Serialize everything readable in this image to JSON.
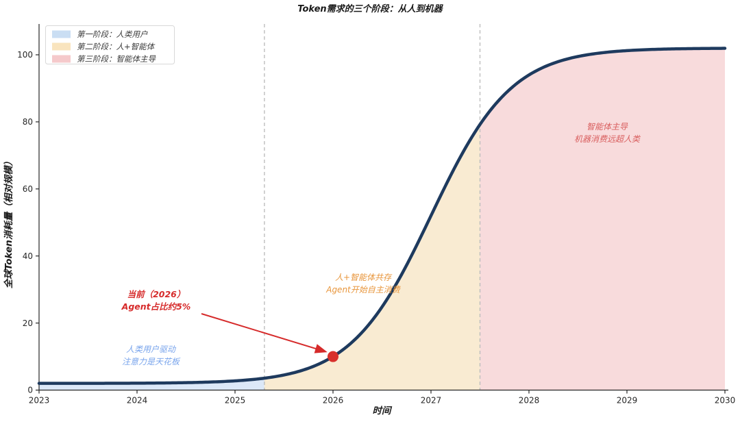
{
  "title": "Token需求的三个阶段：从人到机器",
  "axes": {
    "xlabel": "时间",
    "ylabel": "全球Token消耗量（相对规模）",
    "x_ticks": [
      2023,
      2024,
      2025,
      2026,
      2027,
      2028,
      2029,
      2030
    ],
    "y_ticks": [
      0,
      20,
      40,
      60,
      80,
      100
    ],
    "spine_color": "#262626"
  },
  "legend": {
    "items": [
      {
        "label": "第一阶段：人类用户",
        "color": "#cadef3"
      },
      {
        "label": "第二阶段：人+智能体",
        "color": "#f9e4be"
      },
      {
        "label": "第三阶段：智能体主导",
        "color": "#f5c9cb"
      }
    ],
    "border_color": "#d8d8d8"
  },
  "annotations": {
    "current": {
      "line1": "当前（2026）",
      "line2": "Agent占比约5%",
      "color": "#d62b2b"
    },
    "phase1": {
      "line1": "人类用户驱动",
      "line2": "注意力是天花板",
      "color": "#7aa5ec"
    },
    "phase2": {
      "line1": "人+智能体共存",
      "line2": "Agent开始自主消费",
      "color": "#e8963c"
    },
    "phase3": {
      "line1": "智能体主导",
      "line2": "机器消费远超人类",
      "color": "#d95f5f"
    }
  },
  "chart_data": {
    "type": "area",
    "title": "Token需求的三个阶段：从人到机器",
    "xlabel": "时间",
    "ylabel": "全球Token消耗量（相对规模）",
    "x_range": [
      2023,
      2030
    ],
    "y_range": [
      0,
      109
    ],
    "grid": false,
    "legend_position": "upper-left",
    "line_color": "#1e3a5e",
    "boundary_line_color": "#bdbdbd",
    "sigmoid": {
      "baseline": 2,
      "amplitude": 100,
      "midpoint": 2027,
      "steepness": 2.44
    },
    "x": [
      2023,
      2023.25,
      2023.5,
      2023.75,
      2024,
      2024.25,
      2024.5,
      2024.75,
      2025,
      2025.25,
      2025.5,
      2025.75,
      2026,
      2026.25,
      2026.5,
      2026.75,
      2027,
      2027.25,
      2027.5,
      2027.75,
      2028,
      2028.25,
      2028.5,
      2028.75,
      2029,
      2029.25,
      2029.5,
      2029.75,
      2030
    ],
    "y": [
      2.0,
      2.01,
      2.02,
      2.04,
      2.07,
      2.12,
      2.22,
      2.41,
      2.75,
      3.38,
      4.51,
      6.52,
      10.0,
      15.8,
      24.8,
      37.2,
      52.0,
      66.8,
      79.2,
      88.2,
      94.0,
      97.5,
      99.5,
      100.6,
      101.2,
      101.6,
      101.8,
      101.9,
      101.9
    ],
    "phases": [
      {
        "name": "第一阶段：人类用户",
        "start": 2023,
        "end": 2025.3,
        "fill": "#dce8f8"
      },
      {
        "name": "第二阶段：人+智能体",
        "start": 2025.3,
        "end": 2027.5,
        "fill": "#f9ebd2"
      },
      {
        "name": "第三阶段：智能体主导",
        "start": 2027.5,
        "end": 2030,
        "fill": "#f8dbdc"
      }
    ],
    "current_point": {
      "x": 2026,
      "y": 10,
      "color": "#d8302c"
    }
  }
}
